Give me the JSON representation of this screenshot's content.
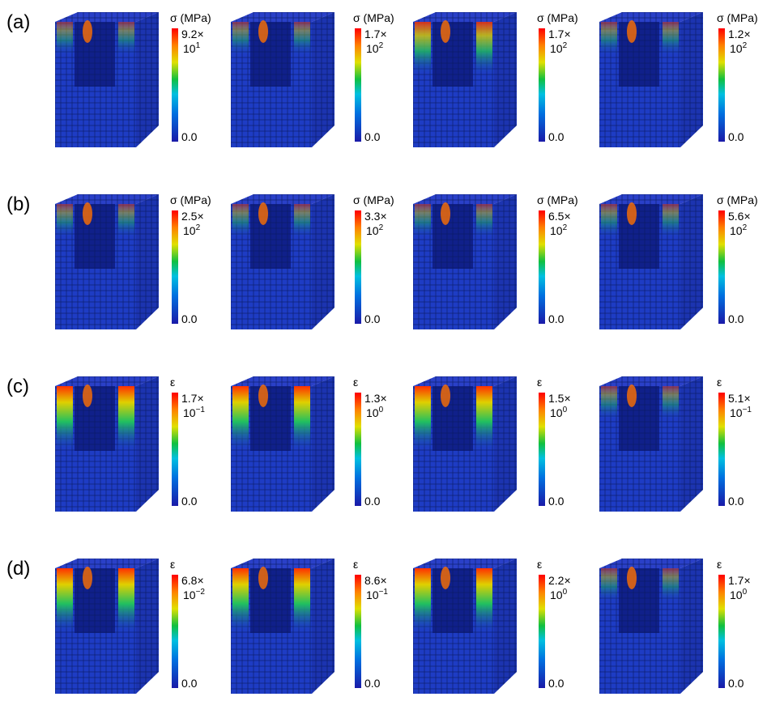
{
  "panels": [
    {
      "label": "(a)",
      "items": [
        {
          "quantity": "σ (MPa)",
          "max_mantissa": "9.2×",
          "max_base": "10",
          "max_exponent": "1",
          "min": "0.0"
        },
        {
          "quantity": "σ (MPa)",
          "max_mantissa": "1.7×",
          "max_base": "10",
          "max_exponent": "2",
          "min": "0.0"
        },
        {
          "quantity": "σ (MPa)",
          "max_mantissa": "1.7×",
          "max_base": "10",
          "max_exponent": "2",
          "min": "0.0"
        },
        {
          "quantity": "σ (MPa)",
          "max_mantissa": "1.2×",
          "max_base": "10",
          "max_exponent": "2",
          "min": "0.0"
        }
      ]
    },
    {
      "label": "(b)",
      "items": [
        {
          "quantity": "σ (MPa)",
          "max_mantissa": "2.5×",
          "max_base": "10",
          "max_exponent": "2",
          "min": "0.0"
        },
        {
          "quantity": "σ (MPa)",
          "max_mantissa": "3.3×",
          "max_base": "10",
          "max_exponent": "2",
          "min": "0.0"
        },
        {
          "quantity": "σ (MPa)",
          "max_mantissa": "6.5×",
          "max_base": "10",
          "max_exponent": "2",
          "min": "0.0"
        },
        {
          "quantity": "σ (MPa)",
          "max_mantissa": "5.6×",
          "max_base": "10",
          "max_exponent": "2",
          "min": "0.0"
        }
      ]
    },
    {
      "label": "(c)",
      "items": [
        {
          "quantity": "ε",
          "max_mantissa": "1.7×",
          "max_base": "10",
          "max_exponent": "−1",
          "min": "0.0"
        },
        {
          "quantity": "ε",
          "max_mantissa": "1.3×",
          "max_base": "10",
          "max_exponent": "0",
          "min": "0.0"
        },
        {
          "quantity": "ε",
          "max_mantissa": "1.5×",
          "max_base": "10",
          "max_exponent": "0",
          "min": "0.0"
        },
        {
          "quantity": "ε",
          "max_mantissa": "5.1×",
          "max_base": "10",
          "max_exponent": "−1",
          "min": "0.0"
        }
      ]
    },
    {
      "label": "(d)",
      "items": [
        {
          "quantity": "ε",
          "max_mantissa": "6.8×",
          "max_base": "10",
          "max_exponent": "−2",
          "min": "0.0"
        },
        {
          "quantity": "ε",
          "max_mantissa": "8.6×",
          "max_base": "10",
          "max_exponent": "−1",
          "min": "0.0"
        },
        {
          "quantity": "ε",
          "max_mantissa": "2.2×",
          "max_base": "10",
          "max_exponent": "0",
          "min": "0.0"
        },
        {
          "quantity": "ε",
          "max_mantissa": "1.7×",
          "max_base": "10",
          "max_exponent": "0",
          "min": "0.0"
        }
      ]
    }
  ]
}
